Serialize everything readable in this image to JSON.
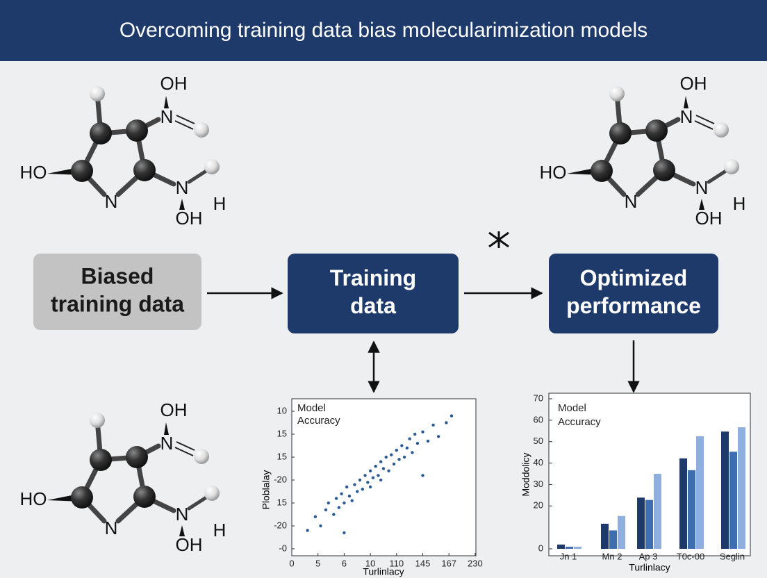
{
  "header": {
    "title": "Overcoming training data bias molecularimization models"
  },
  "molecules": [
    {
      "labels": [
        "OH",
        "N",
        "HO",
        "N",
        "N",
        "H",
        "OH"
      ]
    },
    {
      "labels": [
        "OH",
        "N",
        "HO",
        "N",
        "N",
        "H",
        "OH"
      ]
    },
    {
      "labels": [
        "OH",
        "N",
        "HO",
        "N",
        "N",
        "H",
        "OH"
      ]
    }
  ],
  "flow": {
    "boxes": [
      {
        "lines": [
          "Biased",
          "training data"
        ]
      },
      {
        "lines": [
          "Training",
          "data"
        ]
      },
      {
        "lines": [
          "Optimized",
          "performance"
        ]
      }
    ]
  },
  "scatter_chart": {
    "legend": [
      "Model",
      "Accuracy"
    ],
    "x_label": "Turlinlacy",
    "y_label": "Ploblalay",
    "xticks": [
      {
        "value": 0,
        "label": "0"
      },
      {
        "value": 1,
        "label": "5"
      },
      {
        "value": 2,
        "label": "6"
      },
      {
        "value": 3,
        "label": "10"
      },
      {
        "value": 4,
        "label": "110"
      },
      {
        "value": 5,
        "label": "145"
      },
      {
        "value": 6,
        "label": "167"
      },
      {
        "value": 7,
        "label": "230"
      }
    ],
    "yticks": [
      {
        "value": 0,
        "label": "10"
      },
      {
        "value": 1,
        "label": "15"
      },
      {
        "value": 2,
        "label": "15"
      },
      {
        "value": 3,
        "label": "-20"
      },
      {
        "value": 4,
        "label": "15"
      },
      {
        "value": 5,
        "label": "-20"
      },
      {
        "value": 6,
        "label": "-0"
      }
    ],
    "color": "#2a5a94",
    "points": {
      "x": [
        0.6,
        0.9,
        1.1,
        1.3,
        1.4,
        1.6,
        1.7,
        1.8,
        1.9,
        2.0,
        2.1,
        2.2,
        2.3,
        2.4,
        2.5,
        2.6,
        2.7,
        2.8,
        2.9,
        3.0,
        3.0,
        3.1,
        3.2,
        3.3,
        3.4,
        3.4,
        3.5,
        3.6,
        3.7,
        3.8,
        3.9,
        4.0,
        4.1,
        4.2,
        4.3,
        4.4,
        4.5,
        4.6,
        4.7,
        4.8,
        5.0,
        5.2,
        5.4,
        5.6,
        5.9,
        6.1,
        2.0,
        5.0
      ],
      "y": [
        5.2,
        4.6,
        5.0,
        4.3,
        4.0,
        4.5,
        3.8,
        4.2,
        3.6,
        4.0,
        3.3,
        3.7,
        3.9,
        3.2,
        3.5,
        3.0,
        3.4,
        2.8,
        3.1,
        2.6,
        3.3,
        2.9,
        2.4,
        2.8,
        2.2,
        3.0,
        2.5,
        2.0,
        2.6,
        1.9,
        2.3,
        1.7,
        2.1,
        1.5,
        2.0,
        1.6,
        1.2,
        1.8,
        1.0,
        1.4,
        0.9,
        1.3,
        0.6,
        1.1,
        0.5,
        0.2,
        5.3,
        2.8
      ]
    }
  },
  "bar_chart": {
    "type": "bar",
    "legend": [
      "Model",
      "Accuracy"
    ],
    "x_label": "Turlinlacy",
    "y_label": "Moddolicy",
    "categories": [
      "Jn 1",
      "Mn 2",
      "Ap 3",
      "T0c-00",
      "Seglin"
    ],
    "ylim": [
      0,
      70
    ],
    "yticks": [
      70,
      60,
      50,
      40,
      30,
      20,
      0
    ],
    "series": [
      {
        "color": "#1e3a6b",
        "values": [
          2,
          11.7,
          23.9,
          42.2,
          54.7
        ]
      },
      {
        "color": "#3d6eb0",
        "values": [
          1,
          8.6,
          22.8,
          36.7,
          45.3
        ]
      },
      {
        "color": "#8fb0de",
        "values": [
          1,
          15.3,
          35,
          52.5,
          56.7
        ]
      }
    ]
  }
}
